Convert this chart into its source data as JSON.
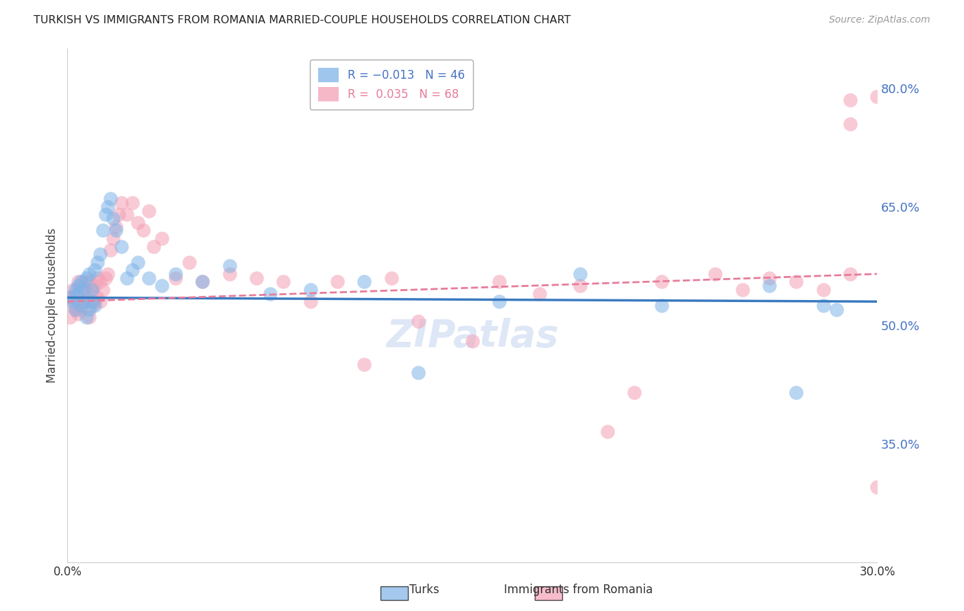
{
  "title": "TURKISH VS IMMIGRANTS FROM ROMANIA MARRIED-COUPLE HOUSEHOLDS CORRELATION CHART",
  "source": "Source: ZipAtlas.com",
  "ylabel": "Married-couple Households",
  "xlim": [
    0.0,
    0.3
  ],
  "ylim": [
    0.2,
    0.85
  ],
  "ytick_labels": [
    "80.0%",
    "65.0%",
    "50.0%",
    "35.0%"
  ],
  "ytick_values": [
    0.8,
    0.65,
    0.5,
    0.35
  ],
  "xtick_labels": [
    "0.0%",
    "",
    "",
    "",
    "",
    "30.0%"
  ],
  "xtick_values": [
    0.0,
    0.06,
    0.12,
    0.18,
    0.24,
    0.3
  ],
  "background_color": "#ffffff",
  "grid_color": "#cccccc",
  "turk_color": "#7fb3e8",
  "romania_color": "#f4a0b5",
  "turk_line_color": "#3a7abf",
  "romania_line_color": "#e87b9a",
  "turks_x": [
    0.001,
    0.002,
    0.003,
    0.003,
    0.004,
    0.004,
    0.005,
    0.005,
    0.006,
    0.006,
    0.007,
    0.007,
    0.008,
    0.008,
    0.009,
    0.009,
    0.01,
    0.01,
    0.011,
    0.012,
    0.013,
    0.014,
    0.015,
    0.016,
    0.017,
    0.018,
    0.02,
    0.022,
    0.024,
    0.026,
    0.03,
    0.035,
    0.04,
    0.05,
    0.06,
    0.075,
    0.09,
    0.11,
    0.13,
    0.16,
    0.19,
    0.22,
    0.26,
    0.27,
    0.28,
    0.285
  ],
  "turks_y": [
    0.535,
    0.53,
    0.545,
    0.52,
    0.55,
    0.54,
    0.555,
    0.525,
    0.545,
    0.53,
    0.56,
    0.51,
    0.565,
    0.52,
    0.545,
    0.53,
    0.57,
    0.525,
    0.58,
    0.59,
    0.62,
    0.64,
    0.65,
    0.66,
    0.635,
    0.62,
    0.6,
    0.56,
    0.57,
    0.58,
    0.56,
    0.55,
    0.565,
    0.555,
    0.575,
    0.54,
    0.545,
    0.555,
    0.44,
    0.53,
    0.565,
    0.525,
    0.55,
    0.415,
    0.525,
    0.52
  ],
  "romania_x": [
    0.001,
    0.001,
    0.002,
    0.002,
    0.003,
    0.003,
    0.004,
    0.004,
    0.004,
    0.005,
    0.005,
    0.006,
    0.006,
    0.007,
    0.007,
    0.008,
    0.008,
    0.009,
    0.009,
    0.01,
    0.01,
    0.011,
    0.011,
    0.012,
    0.012,
    0.013,
    0.014,
    0.015,
    0.016,
    0.017,
    0.018,
    0.019,
    0.02,
    0.022,
    0.024,
    0.026,
    0.028,
    0.03,
    0.032,
    0.035,
    0.04,
    0.045,
    0.05,
    0.06,
    0.07,
    0.08,
    0.09,
    0.1,
    0.11,
    0.12,
    0.13,
    0.15,
    0.16,
    0.175,
    0.19,
    0.2,
    0.21,
    0.22,
    0.24,
    0.25,
    0.26,
    0.27,
    0.28,
    0.29,
    0.3,
    0.29,
    0.3,
    0.29
  ],
  "romania_y": [
    0.535,
    0.51,
    0.545,
    0.525,
    0.54,
    0.52,
    0.555,
    0.53,
    0.515,
    0.55,
    0.52,
    0.555,
    0.53,
    0.545,
    0.535,
    0.555,
    0.51,
    0.545,
    0.525,
    0.55,
    0.53,
    0.56,
    0.535,
    0.555,
    0.53,
    0.545,
    0.56,
    0.565,
    0.595,
    0.61,
    0.625,
    0.64,
    0.655,
    0.64,
    0.655,
    0.63,
    0.62,
    0.645,
    0.6,
    0.61,
    0.56,
    0.58,
    0.555,
    0.565,
    0.56,
    0.555,
    0.53,
    0.555,
    0.45,
    0.56,
    0.505,
    0.48,
    0.555,
    0.54,
    0.55,
    0.365,
    0.415,
    0.555,
    0.565,
    0.545,
    0.56,
    0.555,
    0.545,
    0.565,
    0.295,
    0.785,
    0.79,
    0.755
  ],
  "watermark": "ZIPatlas",
  "watermark_color": "#c8d8f0"
}
